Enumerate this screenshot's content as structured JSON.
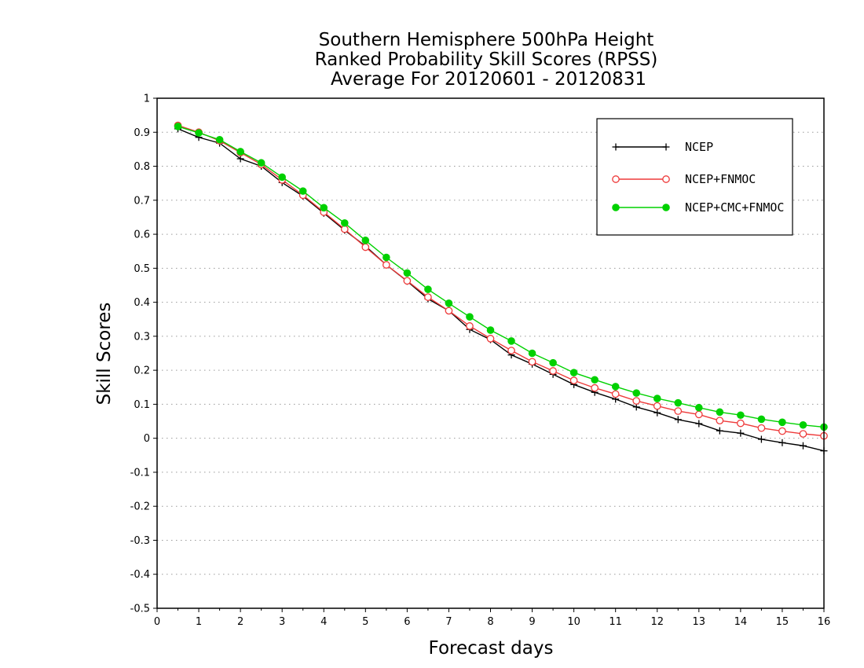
{
  "chart_data": {
    "type": "line",
    "title_lines": [
      "Southern Hemisphere 500hPa Height",
      "Ranked Probability Skill Scores (RPSS)",
      "Average For 20120601 - 20120831"
    ],
    "xlabel": "Forecast days",
    "ylabel": "Skill Scores",
    "xlim": [
      0,
      16
    ],
    "ylim": [
      -0.5,
      1
    ],
    "x_ticks": [
      "0",
      "1",
      "2",
      "3",
      "4",
      "5",
      "6",
      "7",
      "8",
      "9",
      "10",
      "11",
      "12",
      "13",
      "14",
      "15",
      "16"
    ],
    "y_ticks": [
      "1",
      "0.9",
      "0.8",
      "0.7",
      "0.6",
      "0.5",
      "0.4",
      "0.3",
      "0.2",
      "0.1",
      "0",
      "-0.1",
      "-0.2",
      "-0.3",
      "-0.4",
      "-0.5"
    ],
    "grid": "horizontal-dotted",
    "legend_position": "top-right",
    "x": [
      0.5,
      1,
      1.5,
      2,
      2.5,
      3,
      3.5,
      4,
      4.5,
      5,
      5.5,
      6,
      6.5,
      7,
      7.5,
      8,
      8.5,
      9,
      9.5,
      10,
      10.5,
      11,
      11.5,
      12,
      12.5,
      13,
      13.5,
      14,
      14.5,
      15,
      15.5,
      16
    ],
    "series": [
      {
        "name": "NCEP",
        "color": "#000000",
        "marker": "plus",
        "values": [
          0.91,
          0.885,
          0.868,
          0.822,
          0.8,
          0.752,
          0.712,
          0.662,
          0.612,
          0.565,
          0.51,
          0.462,
          0.41,
          0.375,
          0.32,
          0.29,
          0.245,
          0.218,
          0.188,
          0.158,
          0.135,
          0.115,
          0.092,
          0.075,
          0.055,
          0.043,
          0.022,
          0.015,
          -0.003,
          -0.013,
          -0.022,
          -0.037
        ]
      },
      {
        "name": "NCEP+FNMOC",
        "color": "#ee3a3a",
        "marker": "open-circle",
        "values": [
          0.92,
          0.9,
          0.875,
          0.84,
          0.805,
          0.76,
          0.715,
          0.665,
          0.615,
          0.562,
          0.51,
          0.463,
          0.415,
          0.375,
          0.33,
          0.293,
          0.258,
          0.225,
          0.198,
          0.17,
          0.148,
          0.13,
          0.11,
          0.095,
          0.08,
          0.07,
          0.052,
          0.044,
          0.03,
          0.021,
          0.013,
          0.007
        ]
      },
      {
        "name": "NCEP+CMC+FNMOC",
        "color": "#00d100",
        "marker": "filled-circle",
        "values": [
          0.917,
          0.898,
          0.878,
          0.843,
          0.81,
          0.768,
          0.727,
          0.678,
          0.633,
          0.582,
          0.532,
          0.486,
          0.438,
          0.397,
          0.357,
          0.318,
          0.286,
          0.25,
          0.222,
          0.193,
          0.172,
          0.152,
          0.133,
          0.117,
          0.104,
          0.09,
          0.077,
          0.068,
          0.056,
          0.047,
          0.039,
          0.033
        ]
      }
    ]
  }
}
